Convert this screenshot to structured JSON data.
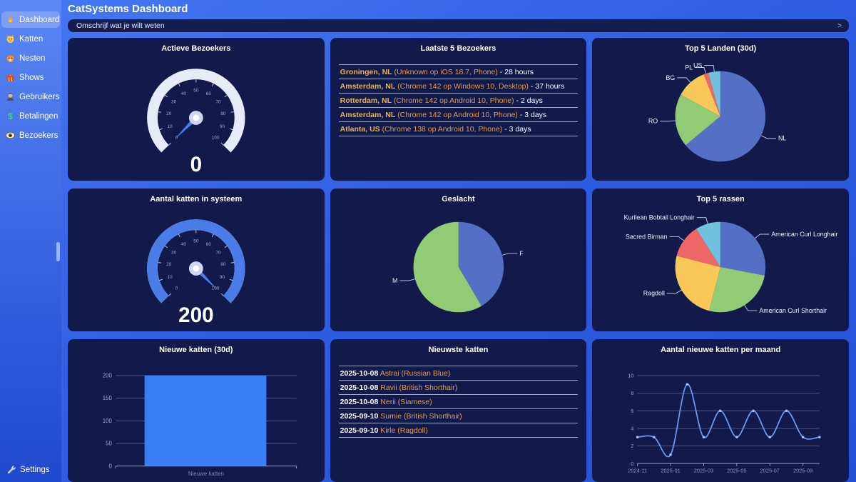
{
  "app": {
    "title": "CatSystems Dashboard"
  },
  "sidebar": {
    "items": [
      {
        "label": "Dashboard",
        "icon": "flame-icon",
        "active": true
      },
      {
        "label": "Katten",
        "icon": "cat-face-icon",
        "active": false
      },
      {
        "label": "Nesten",
        "icon": "kitten-icon",
        "active": false
      },
      {
        "label": "Shows",
        "icon": "show-tent-icon",
        "active": false
      },
      {
        "label": "Gebruikers",
        "icon": "user-icon",
        "active": false
      },
      {
        "label": "Betalingen",
        "icon": "dollar-icon",
        "active": false
      },
      {
        "label": "Bezoekers",
        "icon": "eye-icon",
        "active": false
      }
    ],
    "settings": {
      "label": "Settings",
      "icon": "wrench-icon"
    }
  },
  "search": {
    "placeholder": "Omschrijf wat je wilt weten",
    "submit_label": ">"
  },
  "colors": {
    "background": "#2e5ce2",
    "card": "#111a4a",
    "bar_fill": "#3b7cf7",
    "gauge_track": "#e6ebf8",
    "gauge_fill": "#4a7de8",
    "needle": "#4a7de8",
    "line": "#6b9bf2",
    "gold": "#f2b13e",
    "orange": "#ec9a3c",
    "pie_palette": [
      "#5470c6",
      "#91cc75",
      "#fac858",
      "#ee6666",
      "#73c0de"
    ]
  },
  "cards": [
    {
      "title": "Actieve Bezoekers",
      "type": "gauge",
      "chart": {
        "min": 0,
        "max": 100,
        "value": 0,
        "display": "0",
        "tick_step": 10
      }
    },
    {
      "title": "Laatste 5 Bezoekers",
      "type": "list",
      "rows": [
        {
          "strong": "Groningen, NL",
          "detail": "(Unknown op iOS 18.7, Phone)",
          "suffix": "- 28 hours"
        },
        {
          "strong": "Amsterdam, NL",
          "detail": "(Chrome 142 op Windows 10, Desktop)",
          "suffix": "- 37 hours"
        },
        {
          "strong": "Rotterdam, NL",
          "detail": "(Chrome 142 op Android 10, Phone)",
          "suffix": "- 2 days"
        },
        {
          "strong": "Amsterdam, NL",
          "detail": "(Chrome 142 op Android 10, Phone)",
          "suffix": "- 3 days"
        },
        {
          "strong": "Atlanta, US",
          "detail": "(Chrome 138 op Android 10, Phone)",
          "suffix": "- 3 days"
        }
      ]
    },
    {
      "title": "Top 5 Landen (30d)",
      "type": "pie",
      "chart": {
        "slices": [
          {
            "label": "NL",
            "percent": 64
          },
          {
            "label": "RO",
            "percent": 19
          },
          {
            "label": "BG",
            "percent": 11
          },
          {
            "label": "PL",
            "percent": 1.7
          },
          {
            "label": "US",
            "percent": 4.3
          }
        ]
      }
    },
    {
      "title": "Aantal katten in systeem",
      "type": "gauge",
      "chart": {
        "min": 0,
        "max": 100,
        "value": 200,
        "display": "200",
        "tick_step": 10
      }
    },
    {
      "title": "Geslacht",
      "type": "pie",
      "chart": {
        "slices": [
          {
            "label": "F",
            "percent": 41.5
          },
          {
            "label": "M",
            "percent": 58.5
          }
        ]
      }
    },
    {
      "title": "Top 5 rassen",
      "type": "pie",
      "chart": {
        "slices": [
          {
            "label": "American Curl Longhair",
            "percent": 28
          },
          {
            "label": "American Curl Shorthair",
            "percent": 26
          },
          {
            "label": "Ragdoll",
            "percent": 25
          },
          {
            "label": "Sacred Birman",
            "percent": 12
          },
          {
            "label": "Kurilean Bobtail Longhair",
            "percent": 9
          }
        ]
      }
    },
    {
      "title": "Nieuwe katten (30d)",
      "type": "bar",
      "chart": {
        "categories": [
          "Nieuwe katten"
        ],
        "values": [
          200
        ],
        "ylim": [
          0,
          200
        ],
        "yticks": [
          0,
          50,
          100,
          150,
          200
        ]
      }
    },
    {
      "title": "Nieuwste katten",
      "type": "list",
      "rows": [
        {
          "strong": "2025-10-08",
          "detail": "Astrai (Russian Blue)",
          "suffix": ""
        },
        {
          "strong": "2025-10-08",
          "detail": "Ravii (British Shorthair)",
          "suffix": ""
        },
        {
          "strong": "2025-10-08",
          "detail": "Nerii (Siamese)",
          "suffix": ""
        },
        {
          "strong": "2025-09-10",
          "detail": "Sumie (British Shorthair)",
          "suffix": ""
        },
        {
          "strong": "2025-09-10",
          "detail": "Kirle (Ragdoll)",
          "suffix": ""
        }
      ]
    },
    {
      "title": "Aantal nieuwe katten per maand",
      "type": "line",
      "chart": {
        "x": [
          "2024-11",
          "2024-12",
          "2025-01",
          "2025-02",
          "2025-03",
          "2025-04",
          "2025-05",
          "2025-06",
          "2025-07",
          "2025-08",
          "2025-09",
          "2025-10"
        ],
        "values": [
          3,
          3,
          1,
          9,
          3,
          6,
          3,
          6,
          3,
          6,
          3,
          3
        ],
        "yticks": [
          0,
          2,
          4,
          6,
          8,
          10
        ],
        "x_labels_shown": [
          "2024-11",
          "2025-01",
          "2025-03",
          "2025-05",
          "2025-07",
          "2025-09"
        ]
      }
    }
  ]
}
